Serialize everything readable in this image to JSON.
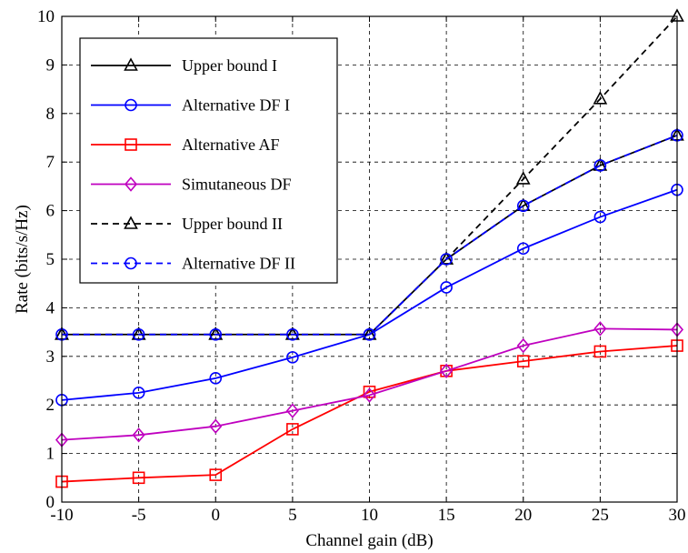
{
  "chart_data": {
    "type": "line",
    "xlabel": "Channel gain (dB)",
    "ylabel": "Rate (bits/s/Hz)",
    "xlim": [
      -10,
      30
    ],
    "ylim": [
      0,
      10
    ],
    "xticks": [
      -10,
      -5,
      0,
      5,
      10,
      15,
      20,
      25,
      30
    ],
    "yticks": [
      0,
      1,
      2,
      3,
      4,
      5,
      6,
      7,
      8,
      9,
      10
    ],
    "grid": true,
    "legend_position": "top-left",
    "x": [
      -10,
      -5,
      0,
      5,
      10,
      15,
      20,
      25,
      30
    ],
    "series": [
      {
        "name": "Upper bound I",
        "color": "#000000",
        "dash": "solid",
        "marker": "triangle",
        "values": [
          3.45,
          3.45,
          3.45,
          3.45,
          3.45,
          5.0,
          6.1,
          6.93,
          7.55
        ]
      },
      {
        "name": "Alternative DF I",
        "color": "#0000ff",
        "dash": "solid",
        "marker": "circle",
        "values": [
          2.1,
          2.25,
          2.55,
          2.98,
          3.45,
          4.42,
          5.22,
          5.87,
          6.43
        ]
      },
      {
        "name": "Alternative AF",
        "color": "#ff0000",
        "dash": "solid",
        "marker": "square",
        "values": [
          0.42,
          0.5,
          0.56,
          1.5,
          2.27,
          2.7,
          2.9,
          3.1,
          3.22
        ]
      },
      {
        "name": "Simutaneous DF",
        "color": "#bf00bf",
        "dash": "solid",
        "marker": "diamond",
        "values": [
          1.28,
          1.38,
          1.56,
          1.88,
          2.2,
          2.7,
          3.22,
          3.57,
          3.55
        ]
      },
      {
        "name": "Upper bound II",
        "color": "#000000",
        "dash": "dashed",
        "marker": "triangle",
        "values": [
          3.45,
          3.45,
          3.45,
          3.45,
          3.45,
          5.0,
          6.65,
          8.3,
          10.0
        ]
      },
      {
        "name": "Alternative DF II",
        "color": "#0000ff",
        "dash": "dashed",
        "marker": "circle",
        "values": [
          3.45,
          3.45,
          3.45,
          3.45,
          3.45,
          5.0,
          6.1,
          6.93,
          7.55
        ]
      }
    ]
  }
}
